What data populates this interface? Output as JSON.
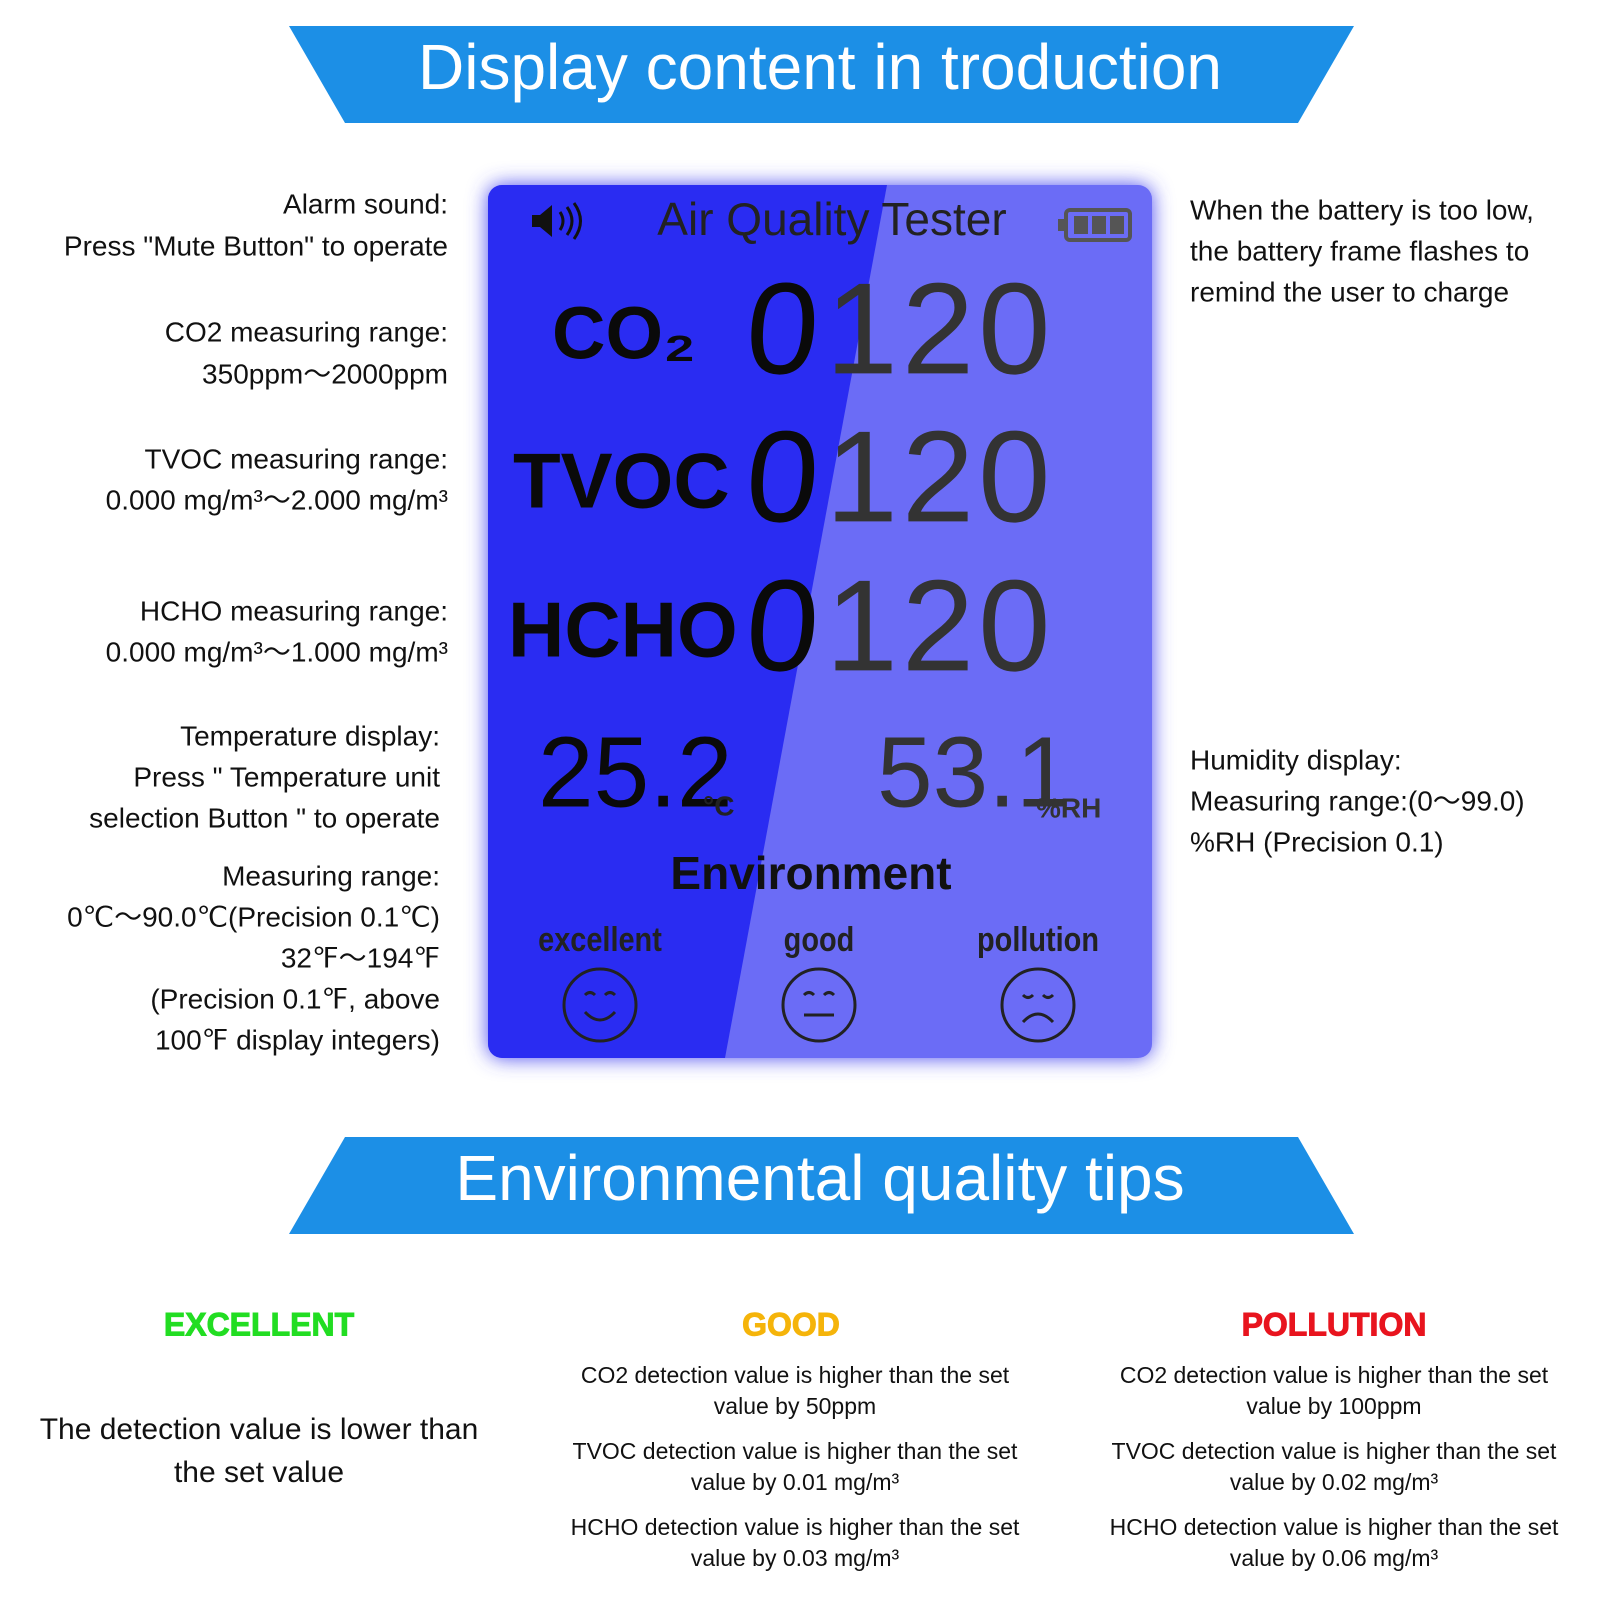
{
  "header": {
    "title": "Display content in troduction"
  },
  "left_notes": [
    {
      "lines": [
        "Alarm sound:",
        "Press \"Mute Button\" to operate"
      ]
    },
    {
      "lines": [
        "CO2 measuring range:",
        "350ppm～2000ppm"
      ]
    },
    {
      "lines": [
        "TVOC measuring range:",
        "0.000 mg/m³～2.000 mg/m³"
      ]
    },
    {
      "lines": [
        "HCHO measuring range:",
        "0.000 mg/m³～1.000 mg/m³"
      ]
    },
    {
      "lines": [
        "Temperature display:",
        "Press \" Temperature unit",
        "selection Button \" to operate"
      ]
    },
    {
      "lines": [
        "Measuring range:",
        "0℃～90.0℃(Precision 0.1℃)",
        "32℉～194℉",
        "(Precision 0.1℉, above",
        "100℉ display integers)"
      ]
    }
  ],
  "right_notes": [
    {
      "lines": [
        "When the battery is too low,",
        "the battery frame flashes to",
        "remind the user to charge"
      ]
    },
    {
      "lines": [
        "Humidity display:",
        "Measuring range:(0～99.0)",
        "%RH (Precision 0.1)"
      ]
    }
  ],
  "display": {
    "title": "Air Quality Tester",
    "readings": [
      {
        "label": "CO₂",
        "lead": "0",
        "digits": "120"
      },
      {
        "label": "TVOC",
        "lead": "0",
        "digits": "120"
      },
      {
        "label": "HCHO",
        "lead": "0",
        "digits": "120"
      }
    ],
    "temperature": {
      "value": "25.2",
      "unit": "°C"
    },
    "humidity": {
      "value": "53.1",
      "unit": "%RH"
    },
    "environment": "Environment",
    "levels": [
      "excellent",
      "good",
      "pollution"
    ]
  },
  "tips": {
    "title": "Environmental quality tips",
    "columns": [
      {
        "heading": "EXCELLENT",
        "items": [
          {
            "lines": [
              "The detection value is lower than",
              "the set value"
            ]
          }
        ]
      },
      {
        "heading": "GOOD",
        "items": [
          {
            "lines": [
              "CO2 detection value is higher than the set",
              "value by 50ppm"
            ]
          },
          {
            "lines": [
              "TVOC detection value is higher than the set",
              "value by 0.01 mg/m³"
            ]
          },
          {
            "lines": [
              "HCHO detection value is higher than the set",
              "value by 0.03 mg/m³"
            ]
          }
        ]
      },
      {
        "heading": "POLLUTION",
        "items": [
          {
            "lines": [
              "CO2 detection value is higher than the set",
              "value by 100ppm"
            ]
          },
          {
            "lines": [
              "TVOC detection value is higher than the set",
              "value by 0.02 mg/m³"
            ]
          },
          {
            "lines": [
              "HCHO detection value is higher than the set",
              "value by 0.06 mg/m³"
            ]
          }
        ]
      }
    ]
  }
}
